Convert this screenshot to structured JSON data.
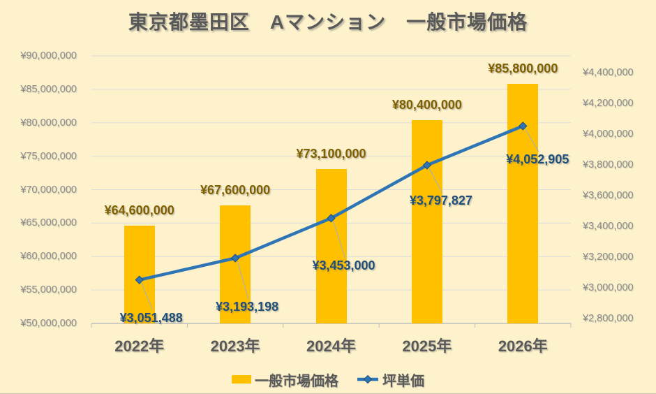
{
  "title": "東京都墨田区　Aマンション　一般市場価格",
  "legend": [
    {
      "label": "一般市場価格",
      "type": "bar"
    },
    {
      "label": "坪単価",
      "type": "line"
    }
  ],
  "chart_data": {
    "type": "combo",
    "categories": [
      "2022年",
      "2023年",
      "2024年",
      "2025年",
      "2026年"
    ],
    "series": [
      {
        "name": "一般市場価格",
        "type": "bar",
        "axis": "left",
        "values": [
          64600000,
          67600000,
          73100000,
          80400000,
          85800000
        ],
        "labels": [
          "¥64,600,000",
          "¥67,600,000",
          "¥73,100,000",
          "¥80,400,000",
          "¥85,800,000"
        ]
      },
      {
        "name": "坪単価",
        "type": "line",
        "axis": "right",
        "values": [
          3051488,
          3193198,
          3453000,
          3797827,
          4052905
        ],
        "labels": [
          "¥3,051,488",
          "¥3,193,198",
          "¥3,453,000",
          "¥3,797,827",
          "¥4,052,905"
        ]
      }
    ],
    "left_axis": {
      "min": 50000000,
      "max": 90000000,
      "step": 5000000,
      "tick_labels": [
        "¥90,000,000",
        "¥85,000,000",
        "¥80,000,000",
        "¥75,000,000",
        "¥70,000,000",
        "¥65,000,000",
        "¥60,000,000",
        "¥55,000,000",
        "¥50,000,000"
      ]
    },
    "right_axis": {
      "min": 2800000,
      "max": 4400000,
      "step": 200000,
      "tick_labels": [
        "¥4,400,000",
        "¥4,200,000",
        "¥4,000,000",
        "¥3,800,000",
        "¥3,600,000",
        "¥3,400,000",
        "¥3,200,000",
        "¥3,000,000",
        "¥2,800,000"
      ]
    },
    "grid": true,
    "legend_position": "bottom",
    "colors": {
      "background": "#FDF2CC",
      "bar": "#FFC000",
      "line": "#2E75B6",
      "marker_stroke": "#1F4E79",
      "bar_label": "#7F6000",
      "line_label": "#1F4E79",
      "axis_text": "#8A8A8A",
      "category_text": "#595959",
      "title_text": "#595959",
      "gridline": "#DBDBDB",
      "axis_line": "#BFBFBF",
      "leader_line": "#9FB0C9"
    }
  }
}
